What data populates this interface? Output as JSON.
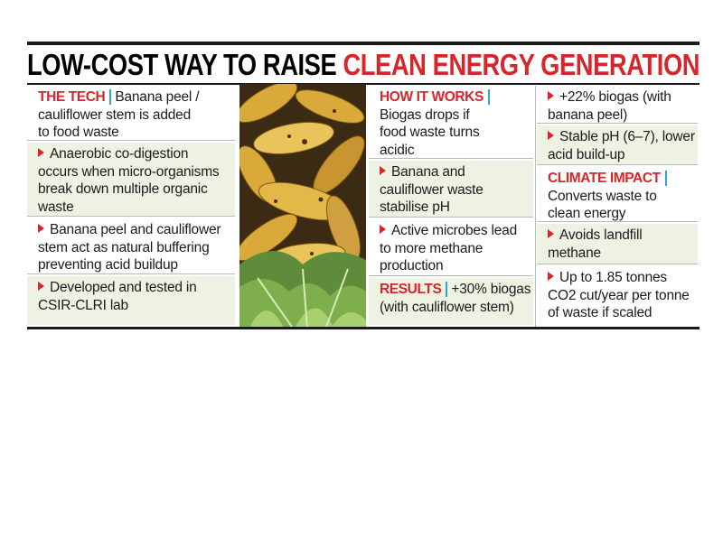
{
  "title": {
    "black": "LOW-COST WAY TO RAISE",
    "red": "CLEAN ENERGY GENERATION"
  },
  "columns": [
    {
      "blocks": [
        {
          "label": "THE TECH",
          "lines": [
            "Banana peel /",
            "cauliflower stem is added",
            "to food waste"
          ]
        },
        {
          "bullet": true,
          "lines": [
            "Anaerobic co-digestion",
            "occurs when micro-organisms",
            "break down multiple organic",
            "waste"
          ]
        },
        {
          "bullet": true,
          "lines": [
            "Banana peel and cauliflower",
            "stem act as natural buffering",
            "preventing acid buildup"
          ]
        },
        {
          "bullet": true,
          "lines": [
            "Developed and tested in",
            "CSIR-CLRI lab"
          ]
        }
      ]
    },
    {
      "blocks": [
        {
          "label": "HOW IT WORKS",
          "lines": [
            "",
            "Biogas drops if",
            "food waste turns",
            "acidic"
          ]
        },
        {
          "bullet": true,
          "lines": [
            "Banana and",
            "cauliflower waste",
            "stabilise pH"
          ]
        },
        {
          "bullet": true,
          "lines": [
            "Active microbes lead",
            "to more methane",
            "production"
          ]
        },
        {
          "label": "RESULTS",
          "lines": [
            "+30% biogas",
            "(with cauliflower stem)"
          ]
        }
      ]
    },
    {
      "blocks": [
        {
          "bullet": true,
          "lines": [
            "+22% biogas (with",
            "banana peel)"
          ]
        },
        {
          "bullet": true,
          "lines": [
            "Stable pH (6–7), lower",
            "acid build-up"
          ]
        },
        {
          "label": "CLIMATE IMPACT",
          "lines": [
            "",
            "Converts waste to",
            "clean energy"
          ]
        },
        {
          "bullet": true,
          "lines": [
            "Avoids landfill",
            "methane"
          ]
        },
        {
          "bullet": true,
          "lines": [
            "Up to 1.85 tonnes",
            "CO2 cut/year per tonne",
            "of waste if scaled"
          ]
        }
      ]
    }
  ]
}
